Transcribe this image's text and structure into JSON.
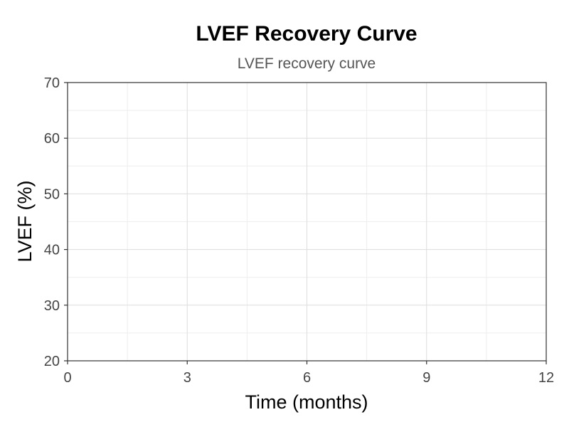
{
  "chart_data": {
    "type": "line",
    "title": "LVEF Recovery Curve",
    "subtitle": "LVEF recovery curve",
    "xlabel": "Time (months)",
    "ylabel": "LVEF (%)",
    "xlim": [
      0,
      12
    ],
    "ylim": [
      20,
      70
    ],
    "x_ticks": [
      0,
      3,
      6,
      9,
      12
    ],
    "y_ticks": [
      20,
      30,
      40,
      50,
      60,
      70
    ],
    "x_minor_ticks": [
      1.5,
      4.5,
      7.5,
      10.5
    ],
    "y_minor_ticks": [
      25,
      35,
      45,
      55,
      65
    ],
    "grid": true,
    "series": [],
    "colors": {
      "grid_major": "#dddddd",
      "grid_minor": "#eeeeee",
      "axis": "#333333"
    }
  }
}
